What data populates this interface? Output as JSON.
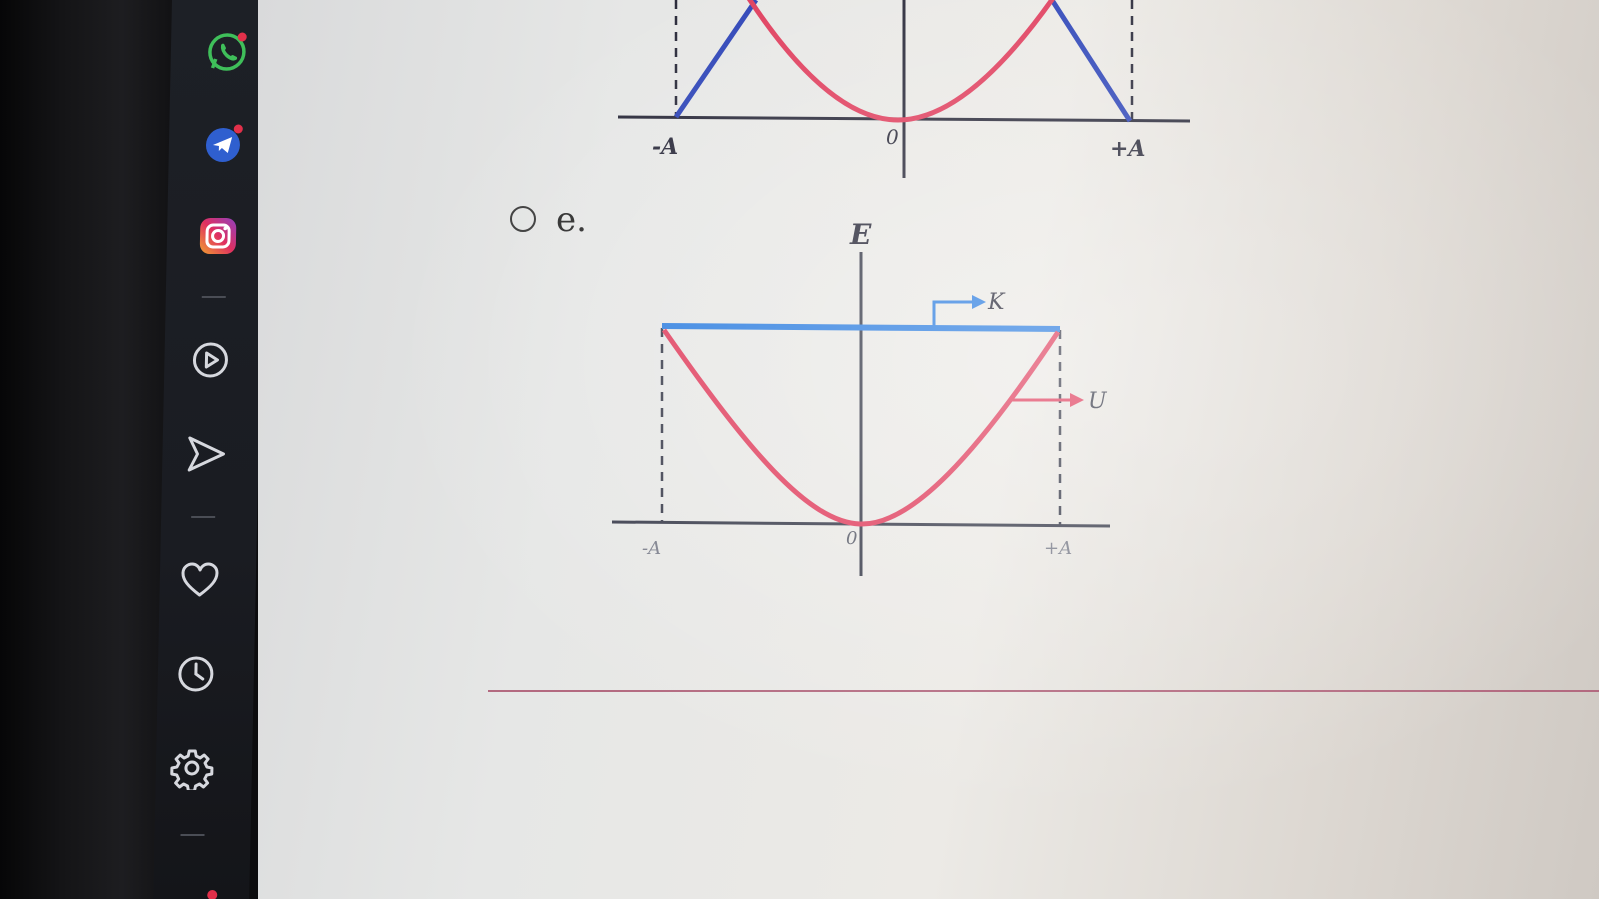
{
  "sidebar": {
    "items": [
      {
        "name": "whatsapp",
        "icon": "whatsapp-icon",
        "badge": true
      },
      {
        "name": "telegram",
        "icon": "telegram-icon",
        "badge": true
      },
      {
        "name": "instagram",
        "icon": "instagram-icon",
        "badge": false
      },
      {
        "name": "player",
        "icon": "play-circle-icon",
        "badge": false
      },
      {
        "name": "send",
        "icon": "send-icon",
        "badge": false
      },
      {
        "name": "favorites",
        "icon": "heart-icon",
        "badge": false
      },
      {
        "name": "history",
        "icon": "clock-icon",
        "badge": false
      },
      {
        "name": "settings",
        "icon": "gear-icon",
        "badge": false
      }
    ]
  },
  "question": {
    "option_d_graph": {
      "x_labels": {
        "left": "-A",
        "origin": "0",
        "right": "+A"
      },
      "colors": {
        "kinetic": "#2f46b8",
        "potential": "#e0405f"
      }
    },
    "option_e": {
      "label": "e.",
      "y_axis_label": "E",
      "kinetic_label": "K",
      "potential_label": "U",
      "x_labels": {
        "left": "-A",
        "origin": "0",
        "right": "+A"
      },
      "colors": {
        "kinetic": "#2f7fe0",
        "potential": "#e0405f"
      }
    }
  }
}
